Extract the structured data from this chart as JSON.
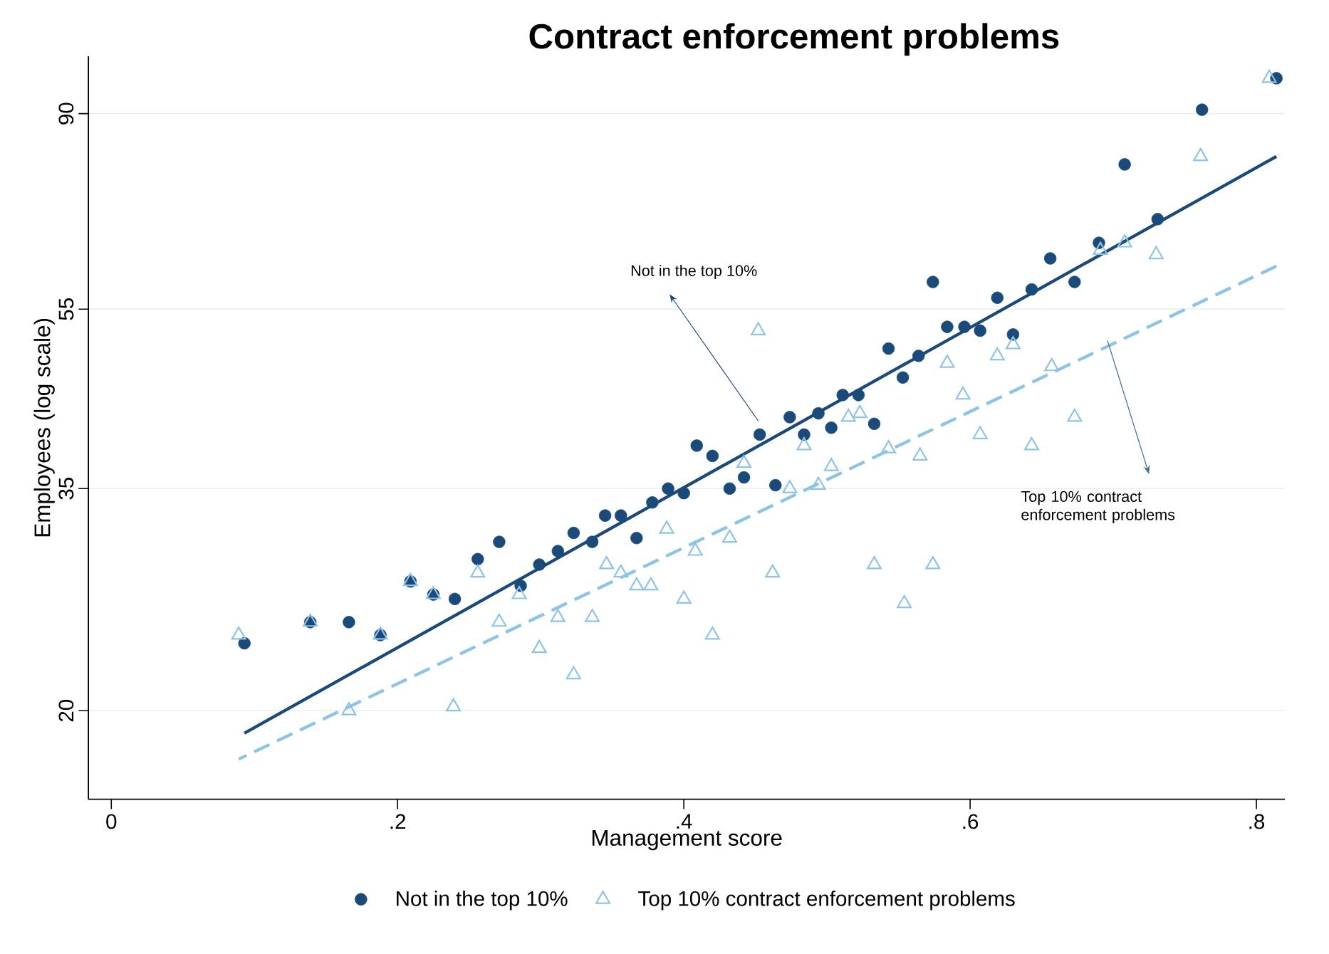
{
  "chart_data": {
    "type": "scatter",
    "title": "Contract enforcement problems",
    "xlabel": "Management score",
    "ylabel": "Employees (log scale)",
    "log": "y",
    "xlim": [
      -0.016,
      0.82
    ],
    "ylim": [
      16,
      104
    ],
    "xticks": [
      0,
      {
        "value": 0.2,
        "label": ".2"
      },
      {
        "value": 0.4,
        "label": ".4"
      },
      {
        "value": 0.6,
        "label": ".6"
      },
      {
        "value": 0.8,
        "label": ".8"
      }
    ],
    "yticks": [
      20,
      35,
      55,
      90
    ],
    "grid": "y",
    "legend": "bottom",
    "annotations": [
      "Not in the top 10%",
      "Top 10% contract enforcement problems"
    ],
    "series": [
      {
        "name": "Not in the top 10%",
        "marker": "circle",
        "color": "#1a4a7a",
        "x": [
          0.093,
          0.139,
          0.166,
          0.188,
          0.209,
          0.225,
          0.24,
          0.256,
          0.271,
          0.286,
          0.299,
          0.312,
          0.323,
          0.336,
          0.345,
          0.356,
          0.367,
          0.378,
          0.389,
          0.4,
          0.409,
          0.42,
          0.432,
          0.442,
          0.453,
          0.464,
          0.474,
          0.484,
          0.494,
          0.503,
          0.511,
          0.522,
          0.533,
          0.543,
          0.553,
          0.564,
          0.574,
          0.584,
          0.596,
          0.607,
          0.619,
          0.63,
          0.643,
          0.656,
          0.673,
          0.69,
          0.708,
          0.731,
          0.762,
          0.814
        ],
        "values": [
          23.7,
          25.0,
          25.0,
          24.2,
          27.7,
          26.8,
          26.5,
          29.3,
          30.6,
          27.4,
          28.9,
          29.9,
          31.3,
          30.6,
          32.7,
          32.7,
          30.9,
          33.8,
          35.0,
          34.6,
          39.0,
          38.0,
          35.0,
          36.0,
          40.1,
          35.3,
          41.9,
          40.1,
          42.3,
          40.8,
          44.3,
          44.3,
          41.2,
          49.8,
          46.3,
          48.9,
          58.9,
          52.6,
          52.6,
          52.1,
          56.6,
          51.6,
          57.8,
          62.5,
          58.9,
          65.0,
          79.2,
          69.0,
          90.9,
          98.4
        ]
      },
      {
        "name": "Top 10% contract enforcement problems",
        "marker": "triangle",
        "color": "#8cc3e6",
        "x": [
          0.089,
          0.139,
          0.166,
          0.188,
          0.209,
          0.225,
          0.239,
          0.256,
          0.271,
          0.285,
          0.299,
          0.312,
          0.323,
          0.336,
          0.346,
          0.356,
          0.367,
          0.377,
          0.388,
          0.4,
          0.408,
          0.42,
          0.432,
          0.442,
          0.452,
          0.462,
          0.474,
          0.484,
          0.494,
          0.503,
          0.515,
          0.523,
          0.533,
          0.543,
          0.554,
          0.565,
          0.574,
          0.584,
          0.595,
          0.607,
          0.619,
          0.63,
          0.643,
          0.657,
          0.673,
          0.691,
          0.708,
          0.73,
          0.761,
          0.809
        ],
        "values": [
          24.2,
          25.0,
          20.0,
          24.2,
          27.7,
          26.8,
          20.2,
          28.3,
          25.0,
          26.8,
          23.4,
          25.3,
          21.9,
          25.3,
          28.9,
          28.3,
          27.4,
          27.4,
          31.6,
          26.5,
          29.9,
          24.2,
          30.9,
          37.3,
          52.1,
          28.3,
          35.0,
          39.0,
          35.3,
          37.0,
          41.9,
          42.3,
          28.9,
          38.7,
          26.2,
          38.0,
          28.9,
          48.0,
          44.3,
          40.1,
          48.9,
          50.3,
          39.0,
          47.6,
          41.9,
          63.8,
          65.0,
          63.1,
          80.8,
          98.4
        ]
      },
      {
        "type": "line",
        "line_style": "solid",
        "marker": "none",
        "color": "#1a4a7a",
        "x": [
          0.093,
          0.814
        ],
        "values": [
          18.9,
          80.8
        ]
      },
      {
        "type": "line",
        "line_style": "dashed",
        "marker": "none",
        "color": "#8cc3e6",
        "x": [
          0.089,
          0.814
        ],
        "values": [
          17.7,
          61.3
        ]
      }
    ]
  }
}
